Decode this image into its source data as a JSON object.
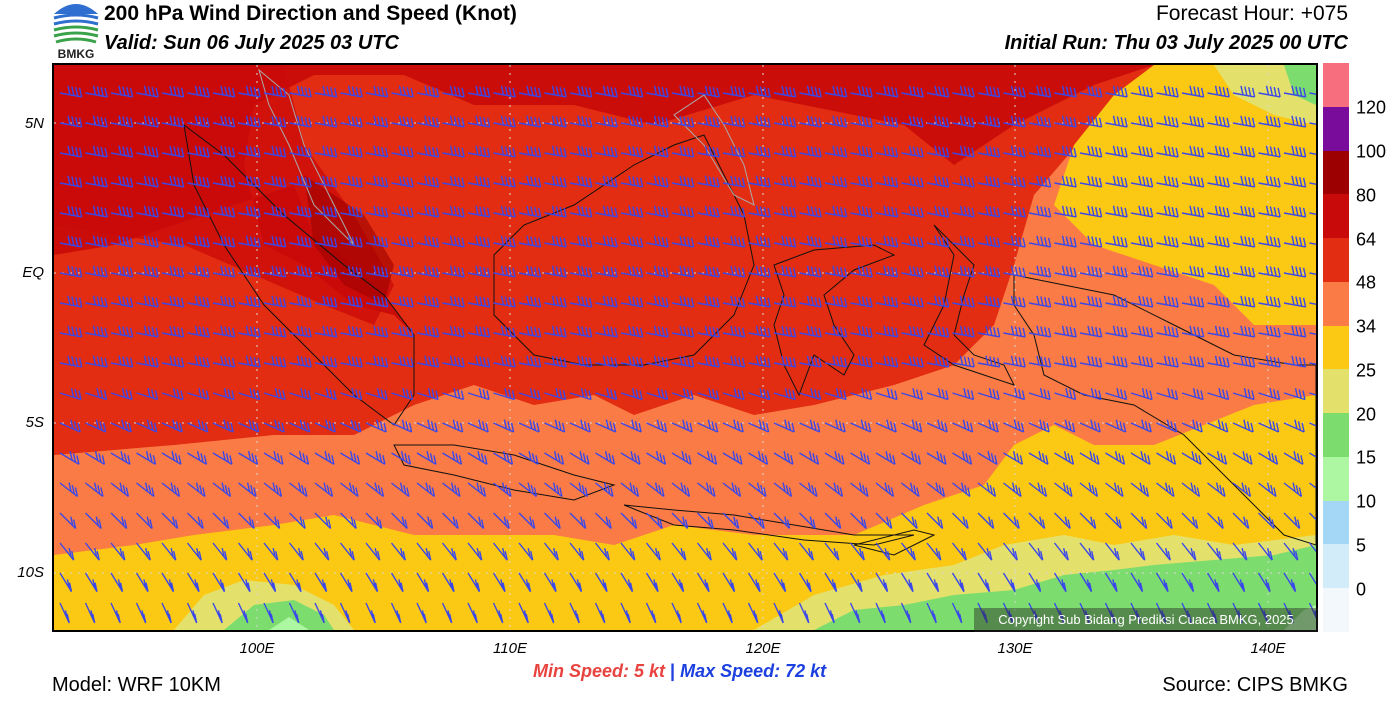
{
  "header": {
    "title": "200 hPa Wind Direction and Speed (Knot)",
    "valid": "Valid: Sun 06 July 2025 03 UTC",
    "forecast_hour": "Forecast Hour: +075",
    "initial_run": "Initial Run: Thu 03 July 2025 00 UTC",
    "logo_text": "BMKG"
  },
  "map": {
    "lat_labels": [
      "5N",
      "EQ",
      "5S",
      "10S"
    ],
    "lon_labels": [
      "100E",
      "110E",
      "120E",
      "130E",
      "140E"
    ],
    "copyright": "Copyright Sub Bidang Prediksi Cuaca BMKG, 2025"
  },
  "colorbar": {
    "labels": [
      "120",
      "100",
      "80",
      "64",
      "48",
      "34",
      "25",
      "20",
      "15",
      "10",
      "5",
      "0"
    ],
    "colors": [
      "#f76e7e",
      "#7a0c9c",
      "#9c0000",
      "#c90a0a",
      "#e22d12",
      "#fa7b45",
      "#fbc914",
      "#e3e16b",
      "#7ddc6e",
      "#adf6a2",
      "#a4d6f6",
      "#d3ecfa",
      "#f3f8fd"
    ]
  },
  "footer": {
    "min_speed": "Min Speed:   5 kt",
    "separator": "|",
    "max_speed": "Max Speed:  72 kt",
    "model": "Model: WRF 10KM",
    "source": "Source: CIPS BMKG"
  }
}
